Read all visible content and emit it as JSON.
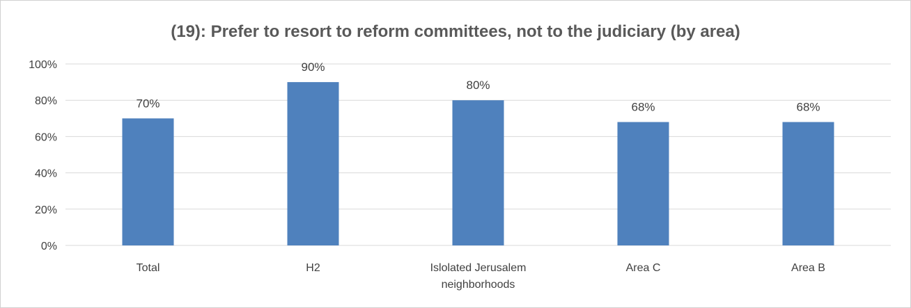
{
  "chart_data": {
    "type": "bar",
    "title": "(19): Prefer to resort to reform committees, not to the judiciary (by area)",
    "categories": [
      [
        "Total"
      ],
      [
        "H2"
      ],
      [
        "Islolated Jerusalem",
        "neighborhoods"
      ],
      [
        "Area C"
      ],
      [
        "Area B"
      ]
    ],
    "values": [
      70,
      90,
      80,
      68,
      68
    ],
    "data_labels": [
      "70%",
      "90%",
      "80%",
      "68%",
      "68%"
    ],
    "y_ticks": [
      "0%",
      "20%",
      "40%",
      "60%",
      "80%",
      "100%"
    ],
    "ylim": [
      0,
      100
    ],
    "grid": true,
    "legend": "none",
    "bar_color": "#4f81bd",
    "grid_color": "#d9d9d9"
  }
}
